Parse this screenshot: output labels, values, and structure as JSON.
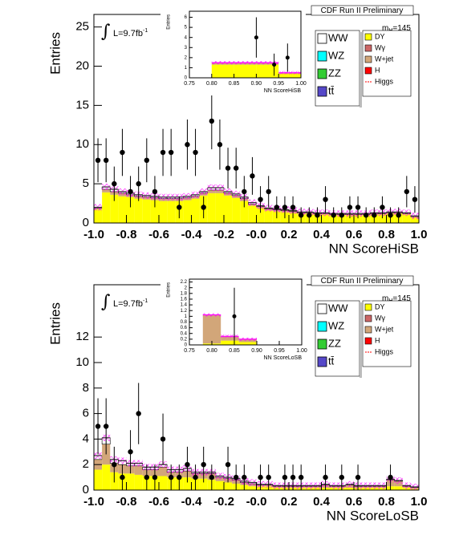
{
  "chart_data": [
    {
      "type": "stacked_histogram",
      "title": "CDF Run II Preliminary",
      "ylabel": "Entries",
      "xlabel": "NN ScoreHiSB",
      "lumi": {
        "prefix": "∫",
        "text": "L=9.7fb",
        "superscript": "-1"
      },
      "mass": {
        "symbol": "m",
        "subscript": "H",
        "text": "=145"
      },
      "xlim": [
        -1,
        1
      ],
      "xticks": [
        {
          "value": -1,
          "label": "-1.0"
        },
        -0.8,
        -0.6,
        -0.4,
        -0.2,
        {
          "value": 0,
          "label": "-0.0"
        },
        0.2,
        0.4,
        0.6,
        0.8,
        {
          "value": 1,
          "label": "1.0"
        }
      ],
      "ylim": [
        0,
        26.6
      ],
      "yticks": [
        0,
        5,
        10,
        15,
        20,
        25
      ],
      "bins": [
        -1,
        -0.95,
        -0.9,
        -0.85,
        -0.8,
        -0.75,
        -0.7,
        -0.65,
        -0.6,
        -0.55,
        -0.5,
        -0.45,
        -0.4,
        -0.35,
        -0.3,
        -0.25,
        -0.2,
        -0.15,
        -0.1,
        -0.05,
        0,
        0.05,
        0.1,
        0.15,
        0.2,
        0.25,
        0.3,
        0.35,
        0.4,
        0.45,
        0.5,
        0.55,
        0.6,
        0.65,
        0.7,
        0.75,
        0.8,
        0.85,
        0.9,
        0.95,
        1
      ],
      "stack": [
        {
          "name": "DY",
          "color": "#ffff00",
          "values": [
            1.7,
            3.9,
            3.6,
            3.4,
            3.3,
            3.1,
            3.0,
            2.9,
            2.8,
            2.8,
            2.8,
            2.9,
            3.1,
            3.5,
            3.8,
            3.8,
            3.5,
            3.2,
            2.8,
            2.2,
            1.9,
            1.6,
            1.5,
            1.4,
            1.3,
            1.2,
            1.2,
            1.1,
            1.1,
            1.0,
            1.0,
            1.0,
            1.0,
            1.0,
            1.1,
            1.1,
            1.2,
            1.2,
            1.1,
            0.7
          ]
        },
        {
          "name": "W+jet",
          "color": "#d2a679",
          "values": [
            0.2,
            0.4,
            0.4,
            0.4,
            0.3,
            0.3,
            0.3,
            0.3,
            0.3,
            0.3,
            0.3,
            0.3,
            0.3,
            0.3,
            0.4,
            0.4,
            0.3,
            0.3,
            0.3,
            0.2,
            0.2,
            0.2,
            0.2,
            0.2,
            0.2,
            0.1,
            0.1,
            0.1,
            0.1,
            0.1,
            0.1,
            0.1,
            0.1,
            0.1,
            0.1,
            0.1,
            0.1,
            0.1,
            0.1,
            0.1
          ]
        },
        {
          "name": "WW",
          "color": "#ffffff",
          "values": [
            0.1,
            0.3,
            0.3,
            0.2,
            0.2,
            0.2,
            0.2,
            0.2,
            0.2,
            0.2,
            0.2,
            0.2,
            0.2,
            0.2,
            0.3,
            0.3,
            0.2,
            0.2,
            0.2,
            0.2,
            0.1,
            0.1,
            0.1,
            0.1,
            0.1,
            0.1,
            0.1,
            0.1,
            0.1,
            0.1,
            0.1,
            0.1,
            0.1,
            0.1,
            0.1,
            0.1,
            0.1,
            0.1,
            0.1,
            0.1
          ]
        }
      ],
      "data": {
        "values": [
          8,
          8,
          5,
          9,
          4,
          5,
          8,
          4,
          9,
          9,
          2,
          10,
          9,
          2,
          13,
          10,
          7,
          7,
          4,
          6,
          3,
          4,
          2,
          2,
          2,
          1,
          1,
          1,
          3,
          1,
          1,
          2,
          2,
          1,
          1,
          2,
          1,
          1,
          4,
          3
        ],
        "errors": [
          2.8,
          2.8,
          2.2,
          3,
          2,
          2.2,
          2.8,
          2,
          3,
          3,
          1.4,
          3.2,
          3,
          1.4,
          3.6,
          3.2,
          2.6,
          2.6,
          2,
          2.4,
          1.7,
          2,
          1.4,
          1.4,
          1.4,
          1,
          1,
          1,
          1.7,
          1,
          1,
          1.4,
          1.4,
          1,
          1,
          1.4,
          1,
          1,
          2,
          1.7
        ]
      },
      "legend": [
        {
          "name": "WW",
          "color": "#ffffff"
        },
        {
          "name": "WZ",
          "color": "#00ffff"
        },
        {
          "name": "ZZ",
          "color": "#33cc33"
        },
        {
          "name": "tt̄",
          "color": "#5548c8"
        },
        {
          "name": "DY",
          "color": "#ffff00"
        },
        {
          "name": "Wγ",
          "color": "#cc6666"
        },
        {
          "name": "W+jet",
          "color": "#d2a679"
        },
        {
          "name": "H",
          "color": "#ff0000"
        },
        {
          "name": "Higgs",
          "color": "#ff0000"
        }
      ],
      "inset": {
        "ylabel": "Entries",
        "xlabel": "NN ScoreHiSB",
        "xlim": [
          0.75,
          1
        ],
        "xticks": [
          0.75,
          {
            "value": 0.8,
            "label": "0.80"
          },
          0.85,
          {
            "value": 0.9,
            "label": "0.90"
          },
          0.95,
          {
            "value": 1,
            "label": "1.00"
          }
        ],
        "ylim": [
          0,
          6.6
        ],
        "yticks": [
          0,
          1,
          2,
          3,
          4,
          5,
          6
        ],
        "bins": [
          0.8,
          0.85,
          0.9,
          0.95,
          1
        ],
        "stack": [
          {
            "color": "#ffff00",
            "values": [
              1.3,
              1.3,
              1.3,
              0.4
            ]
          },
          {
            "color": "#d2a679",
            "values": [
              0.2,
              0.2,
              0.2,
              0.1
            ]
          }
        ],
        "data": {
          "x": [
            0.9,
            0.94,
            0.97
          ],
          "values": [
            4,
            1.3,
            2
          ],
          "errors": [
            2,
            1.1,
            1.4
          ]
        }
      }
    },
    {
      "type": "stacked_histogram",
      "title": "CDF Run II Preliminary",
      "ylabel": "Entries",
      "xlabel": "NN ScoreLoSB",
      "lumi": {
        "prefix": "∫",
        "text": "L=9.7fb",
        "superscript": "-1"
      },
      "mass": {
        "symbol": "m",
        "subscript": "H",
        "text": "=145"
      },
      "xlim": [
        -1,
        1
      ],
      "xticks": [
        {
          "value": -1,
          "label": "-1.0"
        },
        -0.8,
        -0.6,
        -0.4,
        -0.2,
        {
          "value": 0,
          "label": "-0.0"
        },
        0.2,
        0.4,
        0.6,
        0.8,
        {
          "value": 1,
          "label": "1.0"
        }
      ],
      "ylim": [
        0,
        16.1
      ],
      "yticks": [
        0,
        2,
        4,
        6,
        8,
        10,
        12
      ],
      "bins": [
        -1,
        -0.95,
        -0.9,
        -0.85,
        -0.8,
        -0.75,
        -0.7,
        -0.65,
        -0.6,
        -0.55,
        -0.5,
        -0.45,
        -0.4,
        -0.35,
        -0.3,
        -0.25,
        -0.2,
        -0.15,
        -0.1,
        -0.05,
        0,
        0.05,
        0.1,
        0.15,
        0.2,
        0.25,
        0.3,
        0.35,
        0.4,
        0.45,
        0.5,
        0.55,
        0.6,
        0.65,
        0.7,
        0.75,
        0.8,
        0.85,
        0.9,
        0.95,
        1
      ],
      "stack": [
        {
          "name": "DY",
          "color": "#ffff00",
          "values": [
            1.6,
            2.0,
            1.4,
            1.3,
            1.3,
            1.2,
            1.1,
            1.1,
            1.1,
            1.0,
            1.0,
            1.0,
            0.9,
            0.9,
            0.8,
            0.7,
            0.6,
            0.5,
            0.4,
            0.3,
            0.3,
            0.3,
            0.2,
            0.2,
            0.2,
            0.2,
            0.2,
            0.2,
            0.2,
            0.2,
            0.2,
            0.2,
            0.2,
            0.2,
            0.2,
            0.2,
            0.3,
            0.3,
            0.2,
            0.1
          ]
        },
        {
          "name": "W+jet",
          "color": "#d2a679",
          "values": [
            0.8,
            1.6,
            0.7,
            0.7,
            0.6,
            0.7,
            0.5,
            0.5,
            0.7,
            0.4,
            0.4,
            0.5,
            0.4,
            0.4,
            0.5,
            0.3,
            0.3,
            0.3,
            0.2,
            0.2,
            0.1,
            0.1,
            0.1,
            0.1,
            0.1,
            0.1,
            0.1,
            0.1,
            0.2,
            0.1,
            0.1,
            0.2,
            0.1,
            0.1,
            0.1,
            0.1,
            0.5,
            0.4,
            0.1,
            0.1
          ]
        },
        {
          "name": "WW",
          "color": "#ffffff",
          "values": [
            0.3,
            0.5,
            0.3,
            0.3,
            0.2,
            0.2,
            0.2,
            0.2,
            0.2,
            0.2,
            0.2,
            0.2,
            0.1,
            0.1,
            0.1,
            0.1,
            0.1,
            0.1,
            0.1,
            0.1,
            0.05,
            0.05,
            0.05,
            0.05,
            0.05,
            0.05,
            0.05,
            0.05,
            0.05,
            0.05,
            0.05,
            0.05,
            0.05,
            0.05,
            0.05,
            0.05,
            0.05,
            0.05,
            0.05,
            0.05
          ]
        }
      ],
      "data": {
        "values": [
          5,
          5,
          2,
          1,
          3,
          6,
          1,
          1,
          4,
          1,
          1,
          2,
          1,
          2,
          1,
          null,
          2,
          1,
          1,
          null,
          1,
          1,
          null,
          1,
          1,
          1,
          null,
          null,
          1,
          null,
          1,
          null,
          1,
          null,
          null,
          null,
          1,
          null,
          null,
          null
        ],
        "errors": [
          2.2,
          2.2,
          1.4,
          1,
          1.7,
          2.4,
          1,
          1,
          2,
          1,
          1,
          1.4,
          1,
          1.4,
          1,
          null,
          1.4,
          1,
          1,
          null,
          1,
          1,
          null,
          1,
          1,
          1,
          null,
          null,
          1,
          null,
          1,
          null,
          1,
          null,
          null,
          null,
          1,
          null,
          null,
          null
        ]
      },
      "legend": [
        {
          "name": "WW",
          "color": "#ffffff"
        },
        {
          "name": "WZ",
          "color": "#00ffff"
        },
        {
          "name": "ZZ",
          "color": "#33cc33"
        },
        {
          "name": "tt̄",
          "color": "#5548c8"
        },
        {
          "name": "DY",
          "color": "#ffff00"
        },
        {
          "name": "Wγ",
          "color": "#cc6666"
        },
        {
          "name": "W+jet",
          "color": "#d2a679"
        },
        {
          "name": "H",
          "color": "#ff0000"
        },
        {
          "name": "Higgs",
          "color": "#ff0000"
        }
      ],
      "inset": {
        "ylabel": "Entries",
        "xlabel": "NN ScoreLoSB",
        "xlim": [
          0.75,
          1
        ],
        "xticks": [
          0.75,
          {
            "value": 0.8,
            "label": "0.80"
          },
          0.85,
          {
            "value": 0.9,
            "label": "0.90"
          },
          0.95,
          {
            "value": 1,
            "label": "1.00"
          }
        ],
        "ylim": [
          0,
          2.3
        ],
        "yticks": [
          0,
          0.2,
          0.4,
          0.6,
          0.8,
          1,
          1.2,
          1.4,
          1.6,
          1.8,
          2,
          2.2
        ],
        "bins": [
          0.78,
          0.82,
          0.86,
          0.9
        ],
        "stack": [
          {
            "color": "#ffff00",
            "values": [
              0.05,
              0.15,
              0.1
            ]
          },
          {
            "color": "#d2a679",
            "values": [
              1.0,
              0.15,
              0.1
            ]
          }
        ],
        "data": {
          "x": [
            0.85
          ],
          "values": [
            1
          ],
          "errors": [
            1
          ]
        }
      }
    }
  ]
}
